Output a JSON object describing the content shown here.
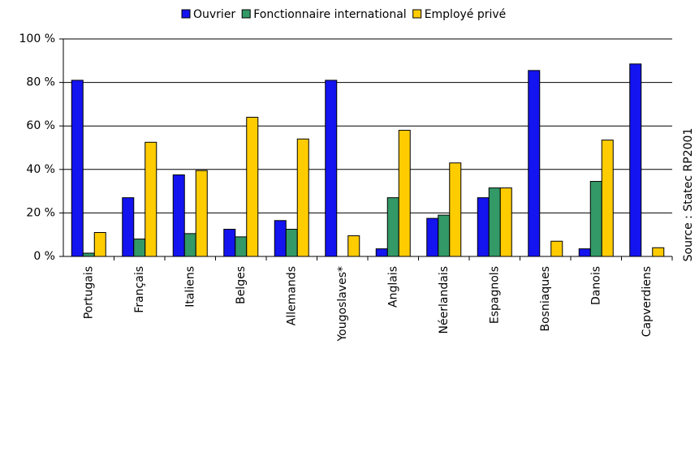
{
  "chart_data": {
    "type": "bar",
    "source": "Source : Statec RP2001",
    "categories": [
      "Portugais",
      "Français",
      "Italiens",
      "Belges",
      "Allemands",
      "Yougoslaves*",
      "Anglais",
      "Néerlandais",
      "Espagnols",
      "Bosniaques",
      "Danois",
      "Capverdiens"
    ],
    "series": [
      {
        "name": "Ouvrier",
        "color": "#1414f0",
        "values": [
          81,
          27,
          37.5,
          12.5,
          16.5,
          81,
          3.5,
          17.5,
          27,
          85.5,
          3.5,
          88.5
        ]
      },
      {
        "name": "Fonctionnaire international",
        "color": "#339966",
        "values": [
          1.5,
          8,
          10.5,
          9,
          12.5,
          0,
          27,
          19,
          31.5,
          0,
          34.5,
          0
        ]
      },
      {
        "name": "Employé privé",
        "color": "#ffcc00",
        "values": [
          11,
          52.5,
          39.5,
          64,
          54,
          9.5,
          58,
          43,
          31.5,
          7,
          53.5,
          4
        ]
      }
    ],
    "ylim": [
      0,
      100
    ],
    "yticks": [
      {
        "value": 0,
        "label": "0 %"
      },
      {
        "value": 20,
        "label": "20 %"
      },
      {
        "value": 40,
        "label": "40 %"
      },
      {
        "value": 60,
        "label": "60 %"
      },
      {
        "value": 80,
        "label": "80 %"
      },
      {
        "value": 100,
        "label": "100 %"
      }
    ],
    "grid": true,
    "legend": "top"
  }
}
